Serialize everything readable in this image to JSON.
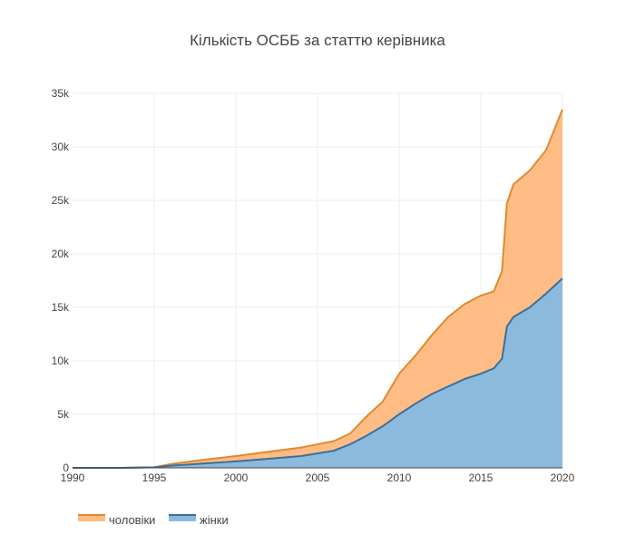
{
  "chart_data": {
    "type": "area",
    "stacked": true,
    "title": "Кількість ОСББ за статтю керівника",
    "xlabel": "",
    "ylabel": "",
    "xlim": [
      1990,
      2020
    ],
    "ylim": [
      0,
      35000
    ],
    "x_ticks": [
      1990,
      1995,
      2000,
      2005,
      2010,
      2015,
      2020
    ],
    "y_ticks": [
      0,
      5000,
      10000,
      15000,
      20000,
      25000,
      30000,
      35000
    ],
    "y_tick_labels": [
      "0",
      "5k",
      "10k",
      "15k",
      "20k",
      "25k",
      "30k",
      "35k"
    ],
    "grid": true,
    "legend_position": "bottom-left",
    "series": [
      {
        "name": "жінки",
        "fill": "#8bbadc",
        "line": "#3d6f99",
        "points": [
          [
            1990,
            0
          ],
          [
            1993,
            0
          ],
          [
            1995,
            50
          ],
          [
            1996,
            200
          ],
          [
            1998,
            400
          ],
          [
            2000,
            600
          ],
          [
            2002,
            850
          ],
          [
            2004,
            1100
          ],
          [
            2006,
            1600
          ],
          [
            2007,
            2200
          ],
          [
            2008,
            3000
          ],
          [
            2009,
            3900
          ],
          [
            2010,
            5000
          ],
          [
            2011,
            6000
          ],
          [
            2012,
            6900
          ],
          [
            2013,
            7600
          ],
          [
            2014,
            8300
          ],
          [
            2015,
            8800
          ],
          [
            2015.8,
            9300
          ],
          [
            2016.3,
            10200
          ],
          [
            2016.6,
            13200
          ],
          [
            2017,
            14100
          ],
          [
            2018,
            15000
          ],
          [
            2019,
            16300
          ],
          [
            2020,
            17700
          ]
        ]
      },
      {
        "name": "чоловіки",
        "fill": "#ffbd85",
        "line": "#e08a2e",
        "points": [
          [
            1990,
            0
          ],
          [
            1993,
            0
          ],
          [
            1995,
            0
          ],
          [
            1996,
            150
          ],
          [
            1998,
            350
          ],
          [
            2000,
            500
          ],
          [
            2002,
            650
          ],
          [
            2004,
            800
          ],
          [
            2006,
            900
          ],
          [
            2007,
            1000
          ],
          [
            2008,
            1800
          ],
          [
            2009,
            2300
          ],
          [
            2010,
            3800
          ],
          [
            2011,
            4500
          ],
          [
            2012,
            5500
          ],
          [
            2013,
            6500
          ],
          [
            2014,
            7000
          ],
          [
            2015,
            7300
          ],
          [
            2015.8,
            7200
          ],
          [
            2016.3,
            8200
          ],
          [
            2016.6,
            11500
          ],
          [
            2017,
            12400
          ],
          [
            2018,
            12800
          ],
          [
            2019,
            13400
          ],
          [
            2020,
            15800
          ]
        ]
      }
    ],
    "legend": [
      {
        "name": "чоловіки",
        "fill": "#ffbd85",
        "line": "#e08a2e"
      },
      {
        "name": "жінки",
        "fill": "#8bbadc",
        "line": "#3d6f99"
      }
    ]
  }
}
